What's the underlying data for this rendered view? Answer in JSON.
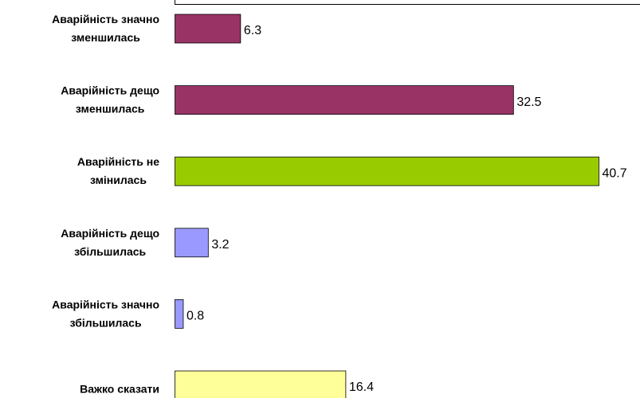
{
  "chart_data": {
    "type": "bar",
    "orientation": "horizontal",
    "categories": [
      "Аварійність значно зменшилась",
      "Аварійність дещо зменшилась",
      "Аварійність не змінилась",
      "Аварійність дещо збільшилась",
      "Аварійність значно збільшилась",
      "Важко сказати"
    ],
    "values": [
      6.3,
      32.5,
      40.7,
      3.2,
      0.8,
      16.4
    ],
    "colors": [
      "#993366",
      "#993366",
      "#99cc00",
      "#9999ff",
      "#9999ff",
      "#ffff99"
    ]
  }
}
